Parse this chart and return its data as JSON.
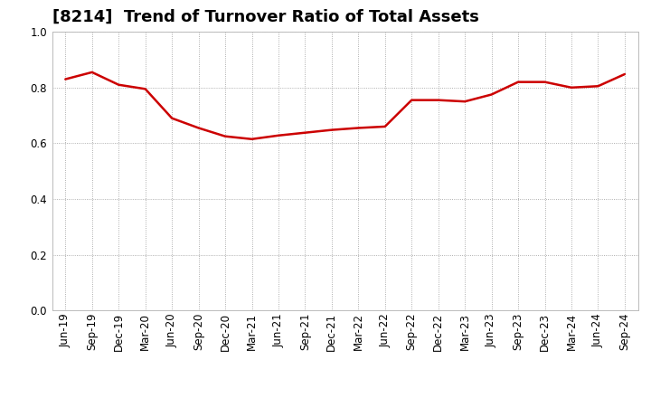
{
  "title": "[8214]  Trend of Turnover Ratio of Total Assets",
  "x_labels": [
    "Jun-19",
    "Sep-19",
    "Dec-19",
    "Mar-20",
    "Jun-20",
    "Sep-20",
    "Dec-20",
    "Mar-21",
    "Jun-21",
    "Sep-21",
    "Dec-21",
    "Mar-22",
    "Jun-22",
    "Sep-22",
    "Dec-22",
    "Mar-23",
    "Jun-23",
    "Sep-23",
    "Dec-23",
    "Mar-24",
    "Jun-24",
    "Sep-24"
  ],
  "values": [
    0.83,
    0.855,
    0.81,
    0.795,
    0.69,
    0.655,
    0.625,
    0.615,
    0.628,
    0.638,
    0.648,
    0.655,
    0.66,
    0.755,
    0.755,
    0.75,
    0.775,
    0.82,
    0.82,
    0.8,
    0.805,
    0.848
  ],
  "line_color": "#cc0000",
  "line_width": 1.8,
  "ylim": [
    0.0,
    1.0
  ],
  "yticks": [
    0.0,
    0.2,
    0.4,
    0.6,
    0.8,
    1.0
  ],
  "background_color": "#ffffff",
  "grid_color": "#999999",
  "title_fontsize": 13,
  "tick_fontsize": 8.5
}
